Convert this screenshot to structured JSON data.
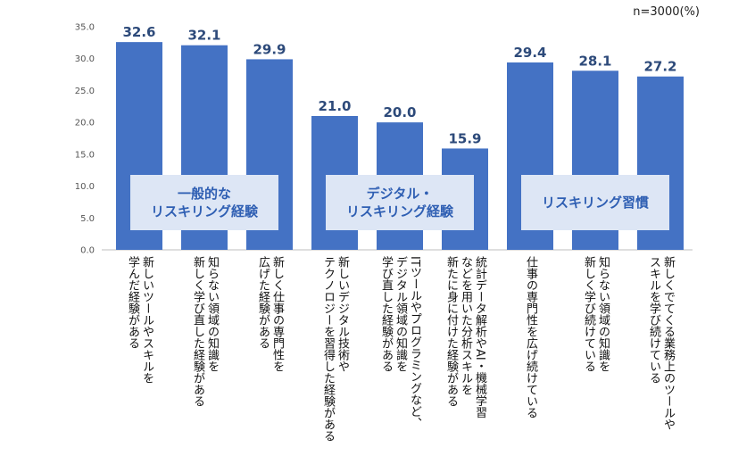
{
  "sample_note": "n=3000(%)",
  "colors": {
    "bar": "#4472c4",
    "label_box": "#dde6f5",
    "label_text": "#2f5fb3",
    "value_text": "#2d4a7a"
  },
  "chart_data": {
    "type": "bar",
    "ylim": [
      0,
      35
    ],
    "yticks": [
      "0.0",
      "5.0",
      "10.0",
      "15.0",
      "20.0",
      "25.0",
      "30.0",
      "35.0"
    ],
    "categories": [
      "新しいツールやスキルを\n学んだ経験がある",
      "知らない領域の知識を\n新しく学び直した経験がある",
      "新しく仕事の専門性を\n広げた経験がある",
      "新しいデジタル技術や\nテクノロジーを習得した経験がある",
      "ITツールやプログラミングなど、\nデジタル領域の知識を\n学び直した経験がある",
      "統計データ解析やAI・機械学習\nなどを用いた分析スキルを\n新たに身に付けた経験がある",
      "仕事の専門性を広げ続けている",
      "知らない領域の知識を\n新しく学び続けている",
      "新しくでてくる業務上のツールや\nスキルを学び続けている"
    ],
    "values": [
      32.6,
      32.1,
      29.9,
      21.0,
      20.0,
      15.9,
      29.4,
      28.1,
      27.2
    ],
    "value_labels": [
      "32.6",
      "32.1",
      "29.9",
      "21.0",
      "20.0",
      "15.9",
      "29.4",
      "28.1",
      "27.2"
    ],
    "groups": [
      {
        "label": "一般的な\nリスキリング経験",
        "start": 0,
        "end": 2
      },
      {
        "label": "デジタル・\nリスキリング経験",
        "start": 3,
        "end": 5
      },
      {
        "label": "リスキリング習慣",
        "start": 6,
        "end": 8
      }
    ]
  }
}
